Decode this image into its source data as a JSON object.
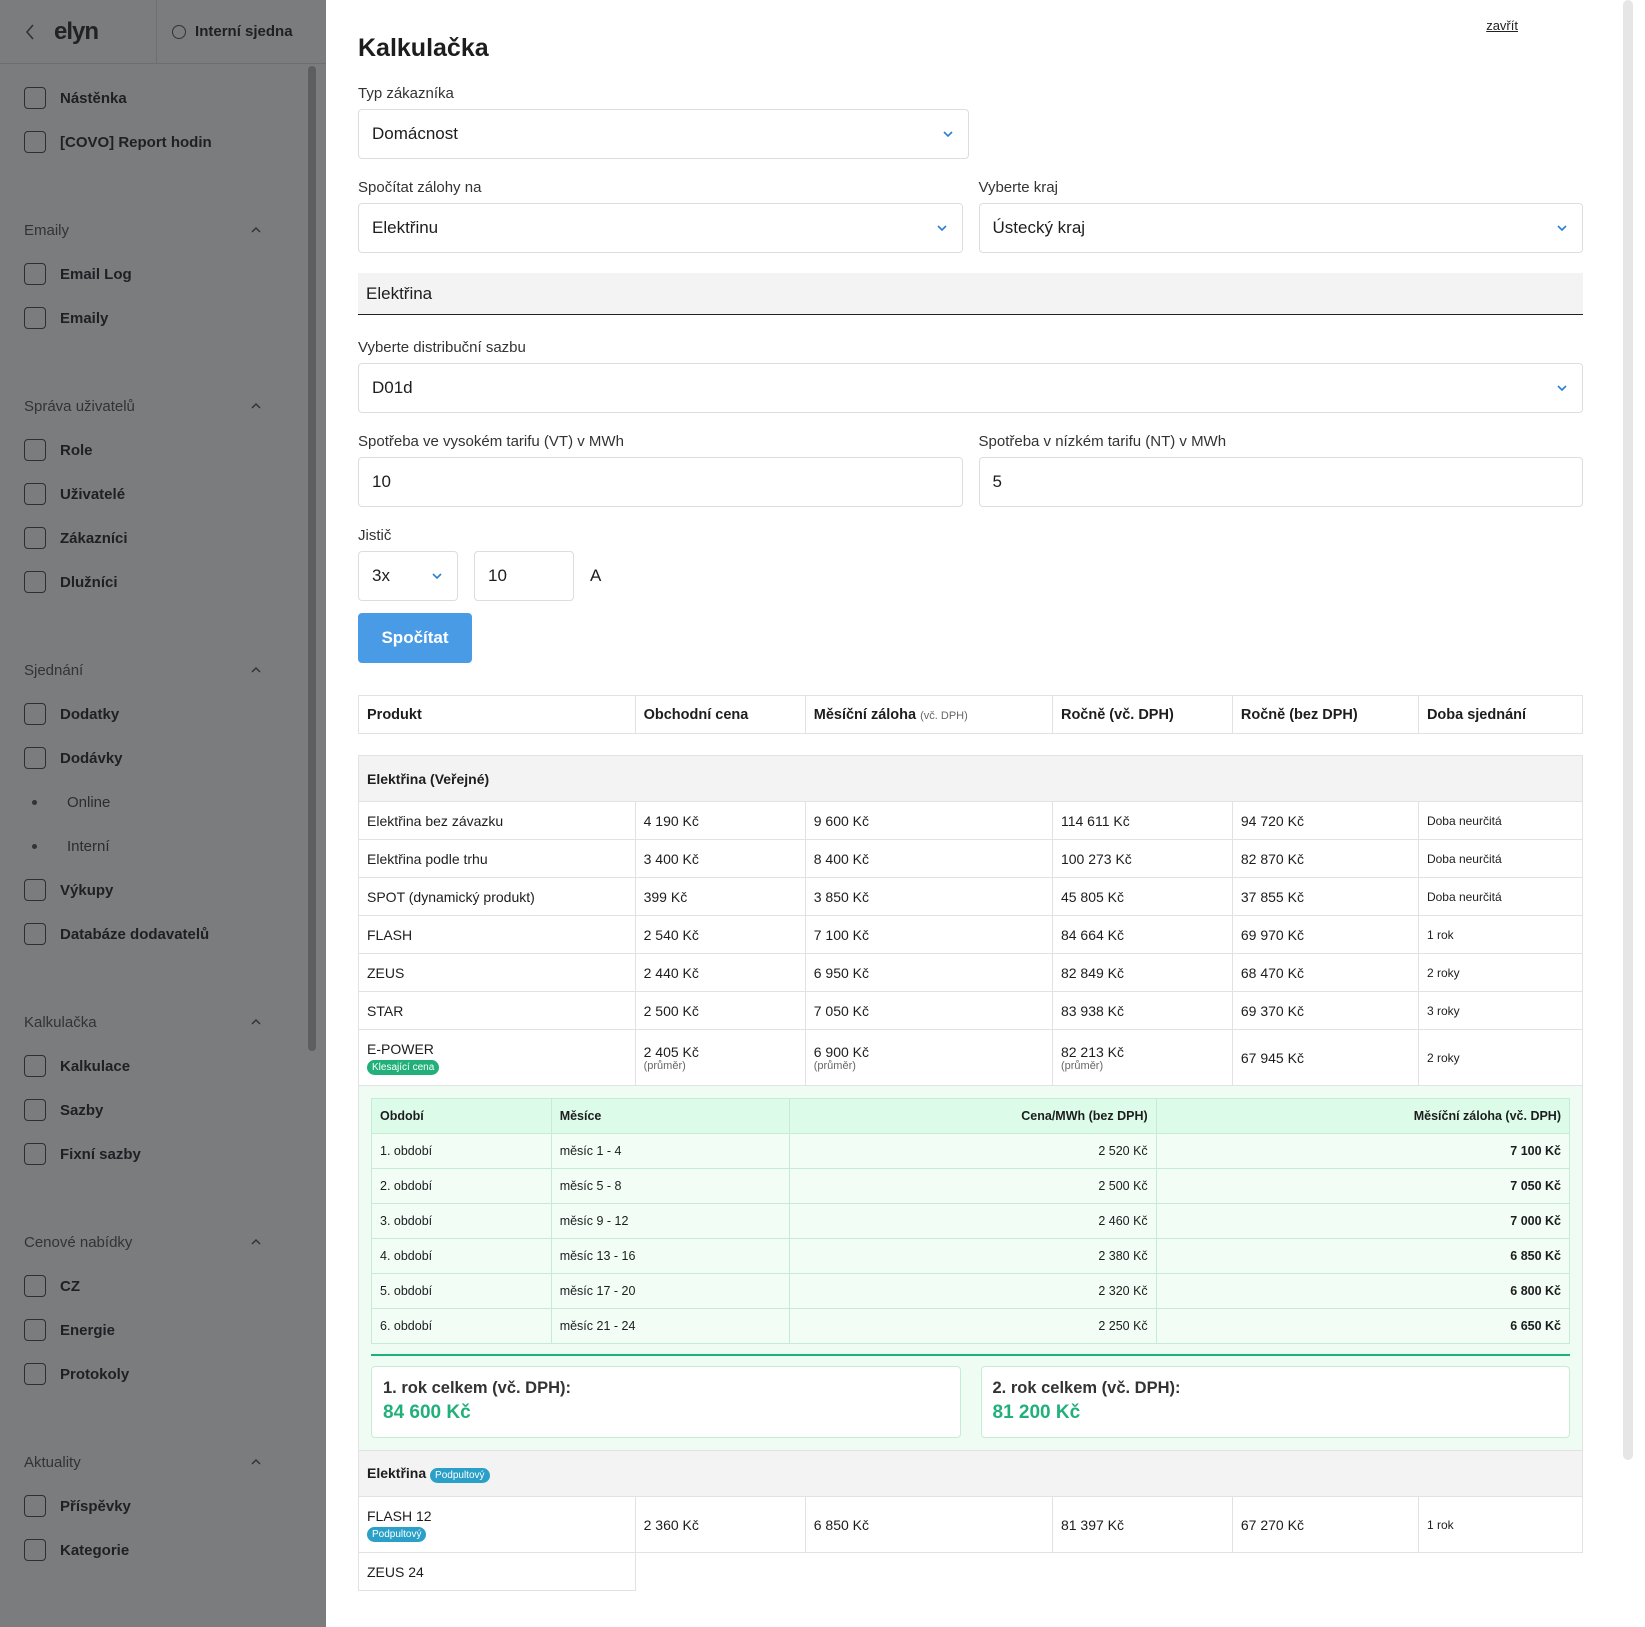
{
  "sidebar": {
    "logo": "elyn",
    "tab": "Interní sjedna",
    "top_items": [
      "Nástěnka",
      "[COVO] Report hodin"
    ],
    "groups": [
      {
        "title": "Emaily",
        "items": [
          {
            "label": "Email Log"
          },
          {
            "label": "Emaily"
          }
        ]
      },
      {
        "title": "Správa uživatelů",
        "items": [
          {
            "label": "Role"
          },
          {
            "label": "Uživatelé"
          },
          {
            "label": "Zákazníci"
          },
          {
            "label": "Dlužníci"
          }
        ]
      },
      {
        "title": "Sjednání",
        "items": [
          {
            "label": "Dodatky"
          },
          {
            "label": "Dodávky",
            "children": [
              "Online",
              "Interní"
            ]
          },
          {
            "label": "Výkupy"
          },
          {
            "label": "Databáze dodavatelů"
          }
        ]
      },
      {
        "title": "Kalkulačka",
        "items": [
          {
            "label": "Kalkulace"
          },
          {
            "label": "Sazby"
          },
          {
            "label": "Fixní sazby"
          }
        ]
      },
      {
        "title": "Cenové nabídky",
        "items": [
          {
            "label": "CZ"
          },
          {
            "label": "Energie"
          },
          {
            "label": "Protokoly"
          }
        ]
      },
      {
        "title": "Aktuality",
        "items": [
          {
            "label": "Příspěvky"
          },
          {
            "label": "Kategorie"
          }
        ]
      }
    ]
  },
  "modal": {
    "title": "Kalkulačka",
    "close": "zavřít",
    "customer_type": {
      "label": "Typ zákazníka",
      "value": "Domácnost"
    },
    "calc_for": {
      "label": "Spočítat zálohy na",
      "value": "Elektřinu"
    },
    "region": {
      "label": "Vyberte kraj",
      "value": "Ústecký kraj"
    },
    "section": "Elektřina",
    "rate": {
      "label": "Vyberte distribuční sazbu",
      "value": "D01d"
    },
    "vt": {
      "label": "Spotřeba ve vysokém tarifu (VT) v MWh",
      "value": "10"
    },
    "nt": {
      "label": "Spotřeba v nízkém tarifu (NT) v MWh",
      "value": "5"
    },
    "breaker": {
      "label": "Jistič",
      "phases": "3x",
      "amps": "10",
      "unit": "A"
    },
    "button": "Spočítat",
    "table": {
      "headers": [
        {
          "text": "Produkt"
        },
        {
          "text": "Obchodní cena"
        },
        {
          "text": "Měsíční záloha",
          "note": "(vč. DPH)"
        },
        {
          "text": "Ročně (vč. DPH)"
        },
        {
          "text": "Ročně (bez DPH)"
        },
        {
          "text": "Doba sjednání"
        }
      ],
      "groups": [
        {
          "title": "Elektřina (Veřejné)",
          "rows": [
            {
              "cells": [
                "Elektřina bez závazku",
                "4 190 Kč",
                "9 600 Kč",
                "114 611 Kč",
                "94 720 Kč",
                "Doba neurčitá"
              ]
            },
            {
              "cells": [
                "Elektřina podle trhu",
                "3 400 Kč",
                "8 400 Kč",
                "100 273 Kč",
                "82 870 Kč",
                "Doba neurčitá"
              ]
            },
            {
              "cells": [
                "SPOT (dynamický produkt)",
                "399 Kč",
                "3 850 Kč",
                "45 805 Kč",
                "37 855 Kč",
                "Doba neurčitá"
              ]
            },
            {
              "cells": [
                "FLASH",
                "2 540 Kč",
                "7 100 Kč",
                "84 664 Kč",
                "69 970 Kč",
                "1 rok"
              ]
            },
            {
              "cells": [
                "ZEUS",
                "2 440 Kč",
                "6 950 Kč",
                "82 849 Kč",
                "68 470 Kč",
                "2 roky"
              ]
            },
            {
              "cells": [
                "STAR",
                "2 500 Kč",
                "7 050 Kč",
                "83 938 Kč",
                "69 370 Kč",
                "3 roky"
              ]
            },
            {
              "cells": [
                "E-POWER",
                "2 405 Kč",
                "6 900 Kč",
                "82 213 Kč",
                "67 945 Kč",
                "2 roky"
              ],
              "notes": {
                "1": "(průměr)",
                "2": "(průměr)",
                "3": "(průměr)"
              },
              "badge": "Klesající cena",
              "detail": {
                "headers": [
                  "Období",
                  "Měsíce",
                  "Cena/MWh (bez DPH)",
                  "Měsíční záloha (vč. DPH)"
                ],
                "rows": [
                  [
                    "1. období",
                    "měsíc 1 - 4",
                    "2 520 Kč",
                    "7 100 Kč"
                  ],
                  [
                    "2. období",
                    "měsíc 5 - 8",
                    "2 500 Kč",
                    "7 050 Kč"
                  ],
                  [
                    "3. období",
                    "měsíc 9 - 12",
                    "2 460 Kč",
                    "7 000 Kč"
                  ],
                  [
                    "4. období",
                    "měsíc 13 - 16",
                    "2 380 Kč",
                    "6 850 Kč"
                  ],
                  [
                    "5. období",
                    "měsíc 17 - 20",
                    "2 320 Kč",
                    "6 800 Kč"
                  ],
                  [
                    "6. období",
                    "měsíc 21 - 24",
                    "2 250 Kč",
                    "6 650 Kč"
                  ]
                ],
                "totals": [
                  {
                    "label": "1. rok celkem (vč. DPH):",
                    "value": "84 600 Kč"
                  },
                  {
                    "label": "2. rok celkem (vč. DPH):",
                    "value": "81 200 Kč"
                  }
                ]
              }
            }
          ]
        },
        {
          "title": "Elektřina",
          "badge": "Podpultový",
          "rows": [
            {
              "cells": [
                "FLASH 12",
                "2 360 Kč",
                "6 850 Kč",
                "81 397 Kč",
                "67 270 Kč",
                "1 rok"
              ],
              "badge": "Podpultový"
            },
            {
              "cells": [
                "ZEUS 24"
              ]
            }
          ]
        }
      ]
    }
  }
}
